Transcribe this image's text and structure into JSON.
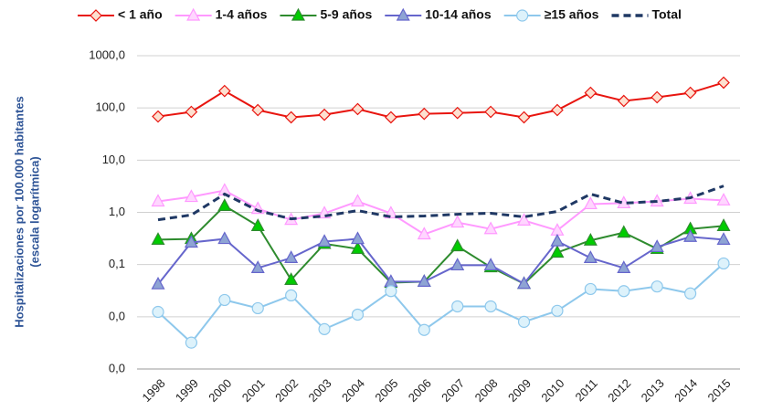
{
  "chart_data": {
    "type": "line",
    "y_label": [
      "Hospitalizaciones por 100.000 habitantes",
      "(escala logarítmica)"
    ],
    "log_scale": true,
    "grid": true,
    "categories": [
      "1998",
      "1999",
      "2000",
      "2001",
      "2002",
      "2003",
      "2004",
      "2005",
      "2006",
      "2007",
      "2008",
      "2009",
      "2010",
      "2011",
      "2012",
      "2013",
      "2014",
      "2015"
    ],
    "ylim": [
      0.001,
      1000
    ],
    "yticks": [
      {
        "value": 0.001,
        "label": "0,0"
      },
      {
        "value": 0.01,
        "label": "0,0"
      },
      {
        "value": 0.1,
        "label": "0,1"
      },
      {
        "value": 1,
        "label": "1,0"
      },
      {
        "value": 10,
        "label": "10,0"
      },
      {
        "value": 100,
        "label": "100,0"
      },
      {
        "value": 1000,
        "label": "1000,0"
      }
    ],
    "series": [
      {
        "name": "< 1 año",
        "color": "#e8150f",
        "marker": "diamond",
        "marker_fill": "#fde0d0",
        "values": [
          68.5,
          84,
          211,
          91,
          66,
          74,
          95,
          66,
          77,
          80,
          84,
          66,
          91,
          195,
          136,
          160,
          195,
          305
        ]
      },
      {
        "name": "1-4 años",
        "color": "#ff99ff",
        "marker": "triangle",
        "marker_fill": "#ffd6ff",
        "values": [
          1.62,
          1.98,
          2.63,
          1.17,
          0.72,
          0.96,
          1.62,
          0.96,
          0.38,
          0.64,
          0.48,
          0.7,
          0.45,
          1.44,
          1.5,
          1.62,
          1.83,
          1.7
        ]
      },
      {
        "name": "5-9 años",
        "color": "#2e8b2e",
        "marker": "triangle",
        "marker_fill": "#00cc00",
        "values": [
          0.3,
          0.31,
          1.33,
          0.55,
          0.051,
          0.25,
          0.2,
          0.045,
          0.047,
          0.225,
          0.089,
          0.043,
          0.17,
          0.29,
          0.41,
          0.2,
          0.48,
          0.55
        ]
      },
      {
        "name": "10-14 años",
        "color": "#6666cc",
        "marker": "triangle",
        "marker_fill": "#8ea4d4",
        "values": [
          0.042,
          0.265,
          0.31,
          0.086,
          0.134,
          0.276,
          0.31,
          0.047,
          0.047,
          0.097,
          0.097,
          0.043,
          0.28,
          0.134,
          0.086,
          0.217,
          0.34,
          0.3
        ]
      },
      {
        "name": "≥15 años",
        "color": "#8ec8ec",
        "marker": "circle",
        "marker_fill": "#ddf2fb",
        "values": [
          0.0124,
          0.0032,
          0.021,
          0.0146,
          0.0257,
          0.0058,
          0.011,
          0.031,
          0.0056,
          0.0158,
          0.0158,
          0.008,
          0.013,
          0.034,
          0.031,
          0.038,
          0.028,
          0.105
        ]
      },
      {
        "name": "Total",
        "color": "#1f3864",
        "dash": true,
        "values": [
          0.72,
          0.89,
          2.24,
          1.08,
          0.75,
          0.85,
          1.08,
          0.82,
          0.85,
          0.92,
          0.96,
          0.82,
          1.04,
          2.24,
          1.5,
          1.62,
          1.9,
          3.2
        ]
      }
    ]
  }
}
